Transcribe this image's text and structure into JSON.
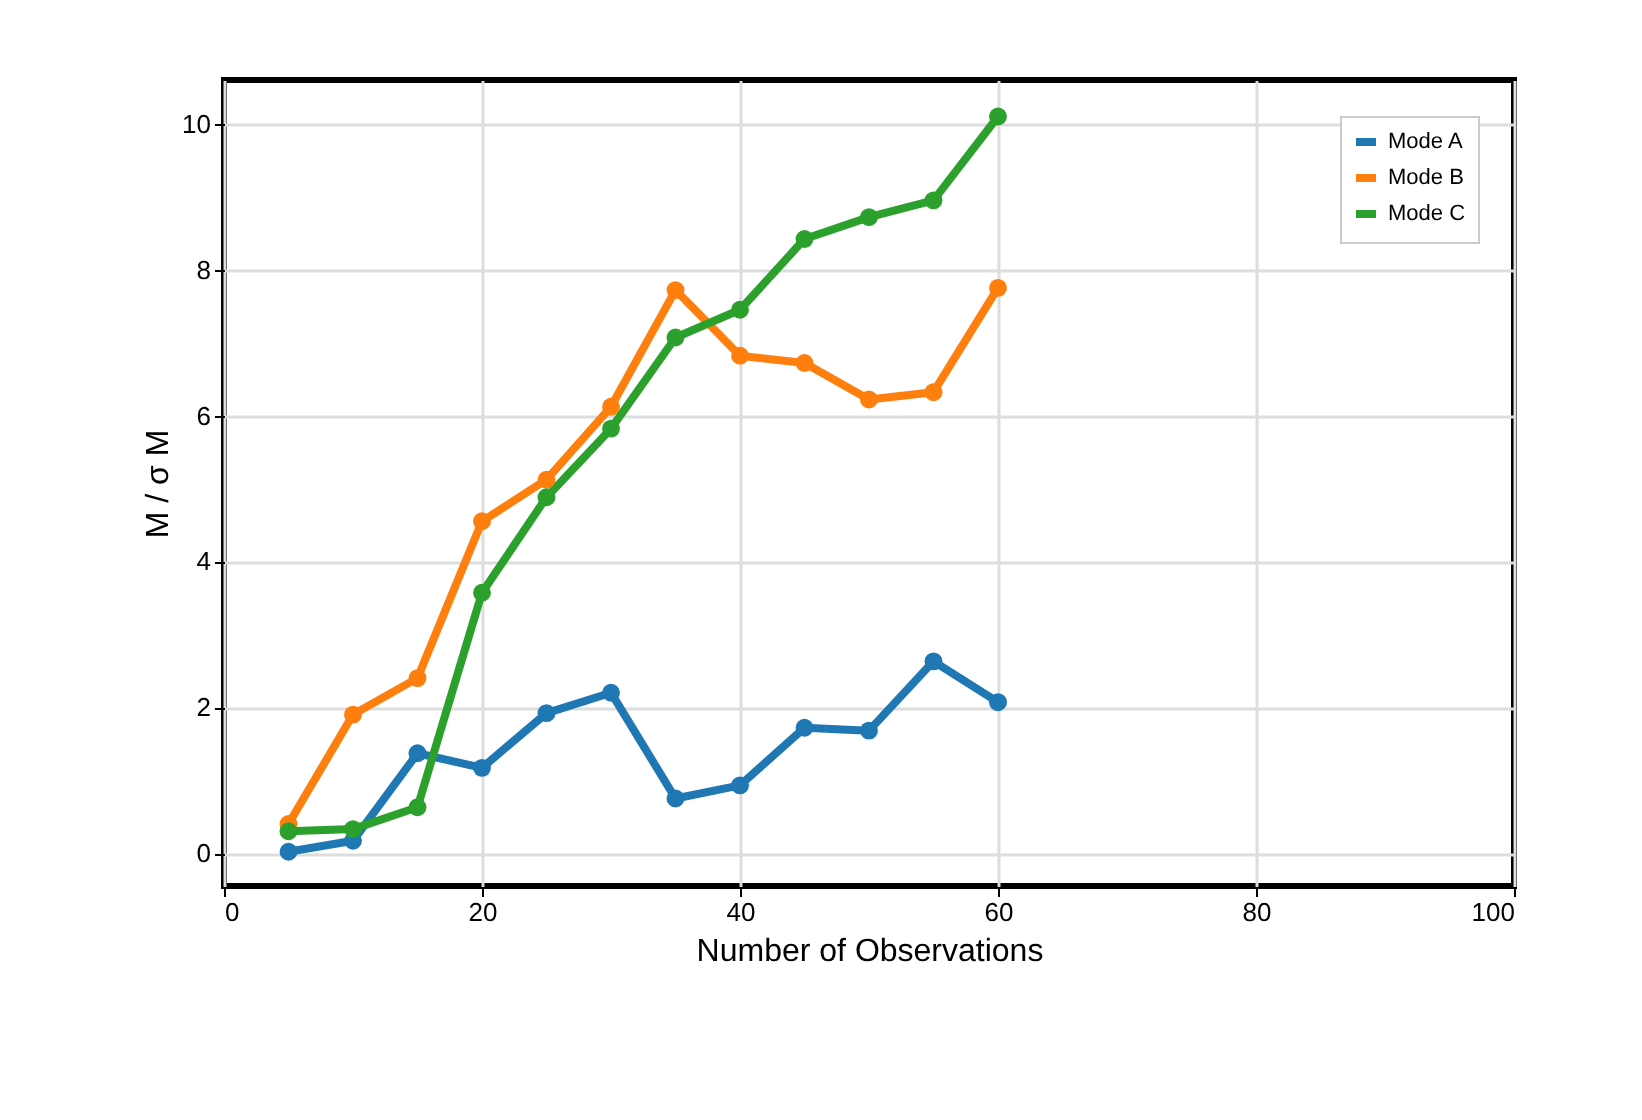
{
  "chart_data": {
    "type": "line",
    "xlabel": "Number of Observations",
    "ylabel": "M / σ M",
    "x": [
      5,
      10,
      15,
      20,
      25,
      30,
      35,
      40,
      45,
      50,
      55,
      60
    ],
    "series": [
      {
        "name": "Mode A",
        "color": "#1f77b4",
        "values": [
          0.02,
          0.17,
          1.37,
          1.17,
          1.92,
          2.2,
          0.75,
          0.93,
          1.72,
          1.68,
          2.63,
          2.07
        ]
      },
      {
        "name": "Mode B",
        "color": "#ff7f0e",
        "values": [
          0.4,
          1.9,
          2.4,
          4.55,
          5.12,
          6.12,
          7.72,
          6.82,
          6.72,
          6.22,
          6.32,
          7.75
        ]
      },
      {
        "name": "Mode C",
        "color": "#2ca02c",
        "values": [
          0.3,
          0.33,
          0.63,
          3.57,
          4.88,
          5.82,
          7.07,
          7.45,
          8.42,
          8.72,
          8.95,
          10.1
        ]
      }
    ],
    "xlim": [
      0,
      100
    ],
    "xticks": [
      0,
      20,
      40,
      60,
      80,
      100
    ],
    "ylim": [
      -0.45,
      10.6
    ],
    "yticks": [
      0,
      2,
      4,
      6,
      8,
      10
    ],
    "grid": true,
    "legend": "top right",
    "marker": "circle",
    "line_style": "solid"
  }
}
